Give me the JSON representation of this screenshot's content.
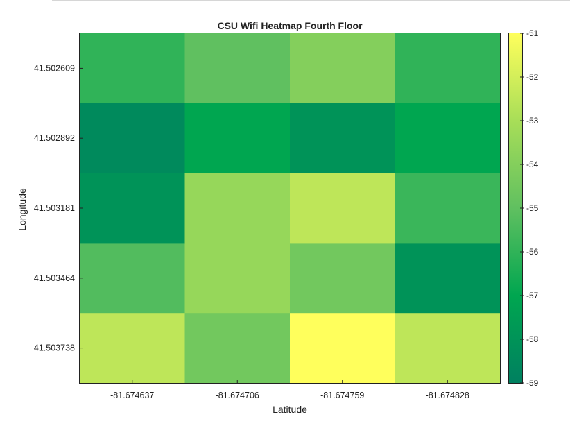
{
  "chart_data": {
    "type": "heatmap",
    "title": "CSU Wifi Heatmap Fourth Floor",
    "xlabel": "Latitude",
    "ylabel": "Longitude",
    "x_categories": [
      "-81.674637",
      "-81.674706",
      "-81.674759",
      "-81.674828"
    ],
    "y_categories": [
      "41.502609",
      "41.502892",
      "41.503181",
      "41.503464",
      "41.503738"
    ],
    "values": [
      [
        -56,
        -55,
        -54,
        -56
      ],
      [
        -58.5,
        -57,
        -58,
        -57
      ],
      [
        -58,
        -53.5,
        -52.5,
        -55.8
      ],
      [
        -55.3,
        -53.5,
        -54.5,
        -58
      ],
      [
        -52.5,
        -54.5,
        -51,
        -52.5
      ]
    ],
    "colorbar": {
      "min": -59,
      "max": -51,
      "ticks": [
        -51,
        -52,
        -53,
        -54,
        -55,
        -56,
        -57,
        -58,
        -59
      ],
      "colormap": [
        "#008060",
        "#00a650",
        "#60c060",
        "#a8de58",
        "#ffff5c"
      ]
    }
  }
}
